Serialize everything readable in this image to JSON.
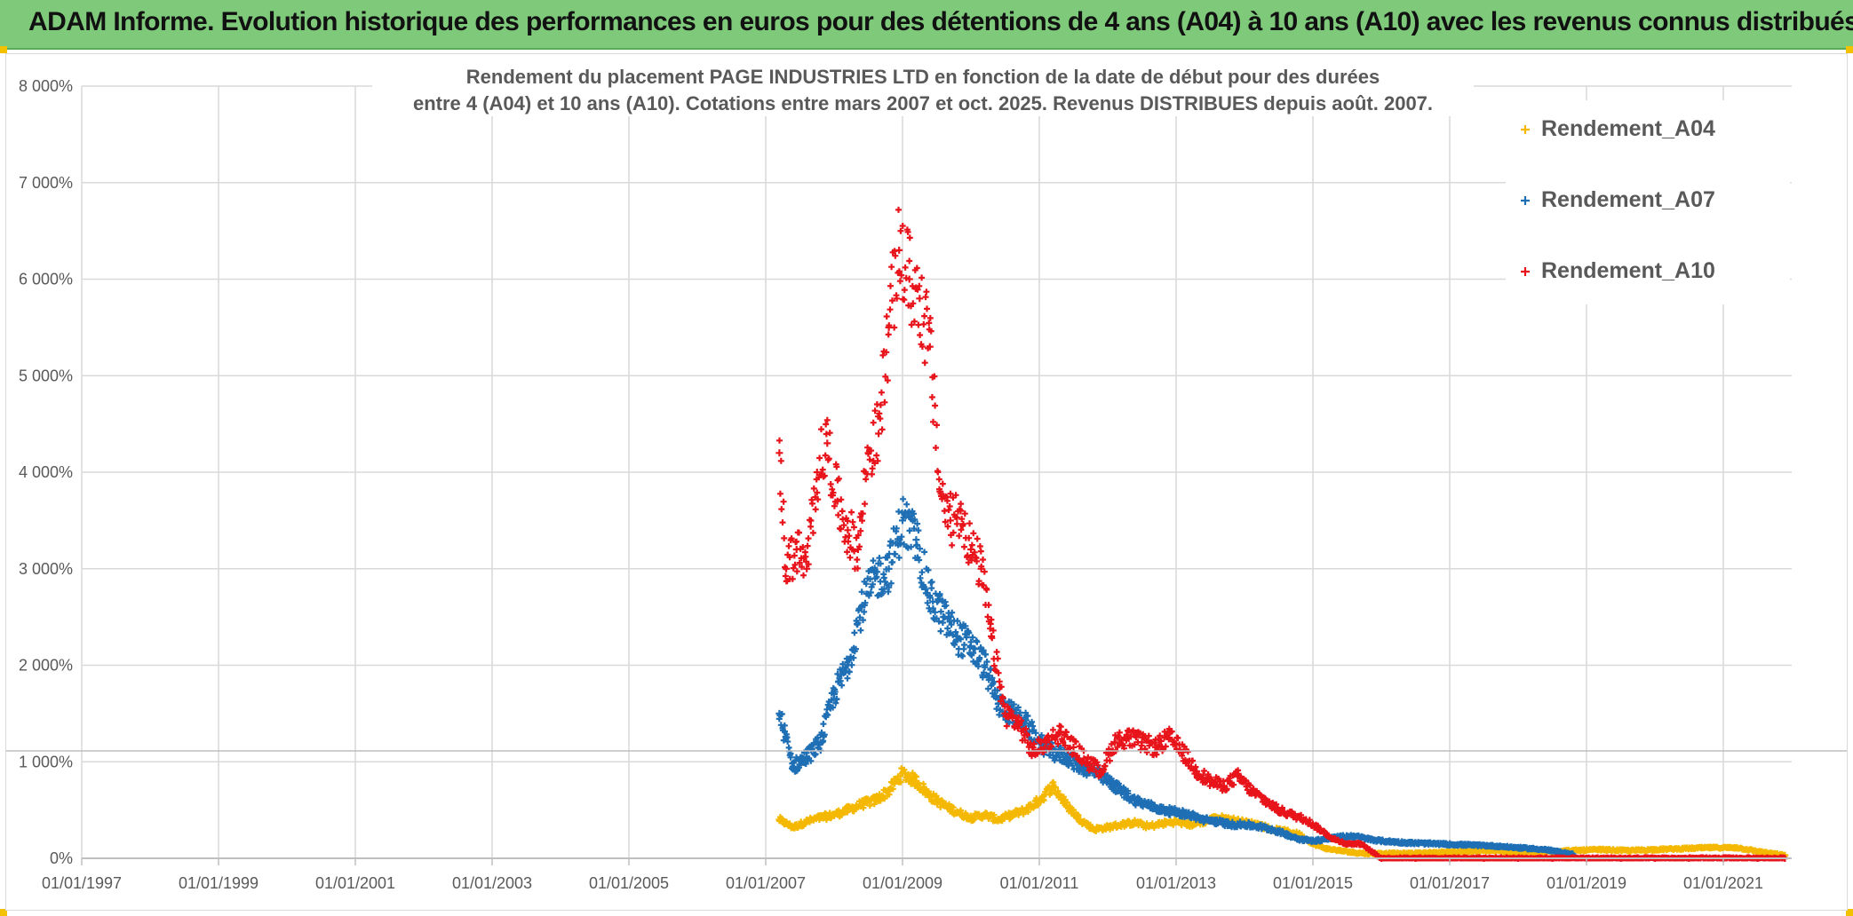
{
  "banner": {
    "title": "ADAM Informe. Evolution historique des performances en euros pour des détentions de 4 ans (A04) à 10 ans (A10) avec les revenus connus distribués"
  },
  "chart_data": {
    "type": "scatter",
    "title_line1": "Rendement du placement PAGE INDUSTRIES LTD en fonction de la date de début pour des durées",
    "title_line2": "entre 4 (A04) et 10 ans (A10). Cotations entre mars 2007 et oct. 2025. Revenus DISTRIBUES depuis août. 2007.",
    "xlabel": "",
    "ylabel": "",
    "x_range": [
      1997.0,
      2022.0
    ],
    "ylim": [
      0,
      8000
    ],
    "y_ticks": [
      {
        "value": 0,
        "label": "0%"
      },
      {
        "value": 1000,
        "label": "1 000%"
      },
      {
        "value": 2000,
        "label": "2 000%"
      },
      {
        "value": 3000,
        "label": "3 000%"
      },
      {
        "value": 4000,
        "label": "4 000%"
      },
      {
        "value": 5000,
        "label": "5 000%"
      },
      {
        "value": 6000,
        "label": "6 000%"
      },
      {
        "value": 7000,
        "label": "7 000%"
      },
      {
        "value": 8000,
        "label": "8 000%"
      }
    ],
    "x_ticks": [
      {
        "value": 1997,
        "label": "01/01/1997"
      },
      {
        "value": 1999,
        "label": "01/01/1999"
      },
      {
        "value": 2001,
        "label": "01/01/2001"
      },
      {
        "value": 2003,
        "label": "01/01/2003"
      },
      {
        "value": 2005,
        "label": "01/01/2005"
      },
      {
        "value": 2007,
        "label": "01/01/2007"
      },
      {
        "value": 2009,
        "label": "01/01/2009"
      },
      {
        "value": 2011,
        "label": "01/01/2011"
      },
      {
        "value": 2013,
        "label": "01/01/2013"
      },
      {
        "value": 2015,
        "label": "01/01/2015"
      },
      {
        "value": 2017,
        "label": "01/01/2017"
      },
      {
        "value": 2019,
        "label": "01/01/2019"
      },
      {
        "value": 2021,
        "label": "01/01/2021"
      }
    ],
    "legend_position": "top-right",
    "grid": true,
    "series": [
      {
        "name": "Rendement_A04",
        "color": "#f5b800",
        "x": [
          2007.2,
          2007.4,
          2007.6,
          2007.8,
          2008.0,
          2008.2,
          2008.4,
          2008.6,
          2008.8,
          2009.0,
          2009.2,
          2009.4,
          2009.6,
          2009.8,
          2010.0,
          2010.2,
          2010.4,
          2010.6,
          2010.8,
          2011.0,
          2011.2,
          2011.4,
          2011.6,
          2011.8,
          2012.0,
          2012.2,
          2012.4,
          2012.6,
          2012.8,
          2013.0,
          2013.2,
          2013.4,
          2013.6,
          2013.8,
          2014.0,
          2014.2,
          2014.4,
          2014.6,
          2014.8,
          2015.0,
          2015.2,
          2015.4,
          2015.6,
          2015.8,
          2016.0,
          2016.4,
          2016.8,
          2017.2,
          2017.6,
          2018.0,
          2018.4,
          2018.8,
          2019.2,
          2019.6,
          2020.0,
          2020.4,
          2020.8,
          2021.2,
          2021.6,
          2021.9
        ],
        "y": [
          400,
          320,
          380,
          420,
          450,
          500,
          560,
          600,
          700,
          880,
          800,
          650,
          550,
          480,
          420,
          450,
          400,
          450,
          500,
          600,
          750,
          550,
          400,
          300,
          320,
          350,
          370,
          330,
          360,
          380,
          350,
          380,
          420,
          400,
          370,
          350,
          300,
          280,
          250,
          150,
          100,
          80,
          60,
          50,
          50,
          50,
          60,
          70,
          80,
          60,
          70,
          80,
          90,
          80,
          90,
          100,
          110,
          110,
          60,
          30
        ]
      },
      {
        "name": "Rendement_A07",
        "color": "#1f6fb5",
        "x": [
          2007.2,
          2007.4,
          2007.6,
          2007.8,
          2008.0,
          2008.2,
          2008.4,
          2008.6,
          2008.8,
          2009.0,
          2009.2,
          2009.4,
          2009.6,
          2009.8,
          2010.0,
          2010.2,
          2010.4,
          2010.6,
          2010.8,
          2011.0,
          2011.2,
          2011.4,
          2011.6,
          2011.8,
          2012.0,
          2012.2,
          2012.4,
          2012.6,
          2012.8,
          2013.0,
          2013.2,
          2013.4,
          2013.6,
          2013.8,
          2014.0,
          2014.2,
          2014.4,
          2014.6,
          2014.8,
          2015.0,
          2015.2,
          2015.4,
          2015.6,
          2015.8,
          2016.0,
          2016.4,
          2016.8,
          2017.2,
          2017.6,
          2018.0,
          2018.4,
          2018.8
        ],
        "y": [
          1500,
          950,
          1050,
          1200,
          1700,
          2000,
          2600,
          2900,
          3000,
          3500,
          3300,
          2700,
          2500,
          2300,
          2200,
          2000,
          1600,
          1500,
          1400,
          1200,
          1100,
          1050,
          950,
          900,
          800,
          700,
          600,
          550,
          500,
          480,
          450,
          400,
          380,
          350,
          350,
          330,
          300,
          250,
          200,
          180,
          200,
          220,
          230,
          200,
          180,
          160,
          150,
          140,
          130,
          110,
          90,
          40
        ]
      },
      {
        "name": "Rendement_A10",
        "color": "#e8141b",
        "x": [
          2007.2,
          2007.3,
          2007.45,
          2007.6,
          2007.75,
          2007.9,
          2008.05,
          2008.2,
          2008.35,
          2008.5,
          2008.65,
          2008.8,
          2008.95,
          2009.1,
          2009.25,
          2009.4,
          2009.55,
          2009.7,
          2009.85,
          2010.0,
          2010.15,
          2010.3,
          2010.5,
          2010.7,
          2010.9,
          2011.1,
          2011.3,
          2011.5,
          2011.7,
          2011.9,
          2012.1,
          2012.3,
          2012.5,
          2012.7,
          2012.9,
          2013.1,
          2013.3,
          2013.5,
          2013.7,
          2013.9,
          2014.1,
          2014.3,
          2014.5,
          2014.7,
          2014.9,
          2015.1,
          2015.3,
          2015.5,
          2015.7,
          2016.0,
          2016.5,
          2017.0,
          2017.5,
          2018.0,
          2018.5,
          2019.0,
          2019.5,
          2020.0,
          2020.5,
          2021.0,
          2021.5,
          2021.9
        ],
        "y": [
          4200,
          3000,
          3200,
          3000,
          4000,
          4300,
          3700,
          3400,
          3200,
          4200,
          4400,
          5500,
          6300,
          6000,
          5800,
          5300,
          3800,
          3500,
          3600,
          3200,
          3000,
          2300,
          1500,
          1400,
          1100,
          1200,
          1300,
          1150,
          1000,
          900,
          1200,
          1250,
          1200,
          1150,
          1250,
          1100,
          900,
          800,
          750,
          850,
          700,
          600,
          500,
          450,
          400,
          300,
          200,
          150,
          150,
          0,
          0,
          0,
          0,
          0,
          0,
          0,
          0,
          0,
          0,
          0,
          0,
          0
        ]
      }
    ]
  }
}
